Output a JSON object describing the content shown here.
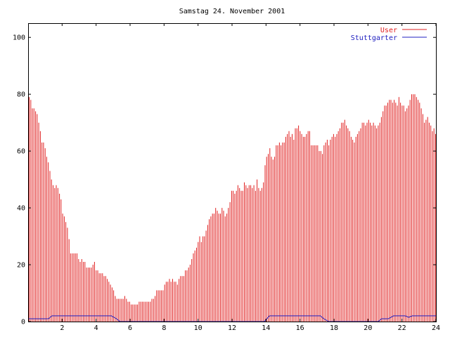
{
  "chart_data": {
    "type": "bar",
    "title": "Samstag 24. November 2001",
    "xlabel": "",
    "ylabel": "",
    "xlim": [
      0,
      24
    ],
    "ylim": [
      0,
      105
    ],
    "x_ticks": [
      2,
      4,
      6,
      8,
      10,
      12,
      14,
      16,
      18,
      20,
      22,
      24
    ],
    "y_ticks": [
      0,
      20,
      40,
      60,
      80,
      100
    ],
    "grid": false,
    "legend_position": "top-right",
    "colors": {
      "user": "#e02020",
      "stuttgarter": "#2020c0",
      "axis": "#000000",
      "background": "#ffffff"
    },
    "series": [
      {
        "name": "User",
        "style": "impulses",
        "interval_hours": 0.0833,
        "values": [
          79,
          78,
          75,
          75,
          74,
          73,
          70,
          67,
          63,
          63,
          61,
          58,
          56,
          53,
          50,
          48,
          47,
          48,
          47,
          45,
          43,
          38,
          37,
          35,
          33,
          29,
          24,
          24,
          24,
          24,
          24,
          22,
          21,
          22,
          21,
          21,
          19,
          19,
          19,
          19,
          20,
          21,
          18,
          18,
          17,
          17,
          17,
          16,
          16,
          15,
          14,
          13,
          12,
          11,
          9,
          8,
          8,
          8,
          8,
          8,
          9,
          8,
          7,
          7,
          6,
          6,
          6,
          6,
          6,
          7,
          7,
          7,
          7,
          7,
          7,
          7,
          7,
          8,
          8,
          9,
          11,
          11,
          11,
          11,
          11,
          13,
          14,
          14,
          15,
          14,
          15,
          14,
          14,
          13,
          15,
          16,
          16,
          16,
          18,
          18,
          19,
          20,
          22,
          24,
          25,
          26,
          28,
          30,
          28,
          30,
          30,
          32,
          34,
          36,
          37,
          38,
          38,
          40,
          39,
          38,
          38,
          40,
          39,
          37,
          38,
          40,
          42,
          46,
          46,
          45,
          46,
          48,
          47,
          46,
          46,
          49,
          48,
          47,
          48,
          48,
          47,
          48,
          46,
          50,
          47,
          46,
          47,
          49,
          55,
          58,
          59,
          61,
          58,
          57,
          58,
          62,
          62,
          63,
          62,
          63,
          63,
          65,
          66,
          67,
          65,
          66,
          64,
          68,
          68,
          69,
          67,
          66,
          65,
          65,
          66,
          67,
          67,
          62,
          62,
          62,
          62,
          62,
          60,
          60,
          59,
          62,
          63,
          64,
          62,
          64,
          65,
          66,
          65,
          66,
          67,
          68,
          70,
          70,
          71,
          69,
          68,
          67,
          65,
          64,
          63,
          65,
          66,
          67,
          68,
          70,
          70,
          69,
          70,
          71,
          70,
          69,
          70,
          69,
          68,
          69,
          70,
          72,
          74,
          76,
          76,
          77,
          78,
          78,
          77,
          78,
          77,
          76,
          79,
          77,
          76,
          76,
          74,
          75,
          76,
          78,
          80,
          80,
          80,
          79,
          78,
          77,
          75,
          73,
          70,
          71,
          72,
          70,
          69,
          67,
          68,
          66
        ]
      },
      {
        "name": "Stuttgarter",
        "style": "lines",
        "points": [
          [
            0,
            1
          ],
          [
            1.2,
            1
          ],
          [
            1.4,
            2
          ],
          [
            4.9,
            2
          ],
          [
            5.2,
            1
          ],
          [
            5.4,
            0
          ],
          [
            9.0,
            0
          ],
          [
            13.9,
            0
          ],
          [
            14.2,
            2
          ],
          [
            17.2,
            2
          ],
          [
            17.4,
            1
          ],
          [
            17.7,
            0
          ],
          [
            20.6,
            0
          ],
          [
            20.8,
            1
          ],
          [
            21.2,
            1
          ],
          [
            21.5,
            2
          ],
          [
            22.2,
            2
          ],
          [
            22.4,
            1.5
          ],
          [
            22.6,
            2
          ],
          [
            24,
            2
          ]
        ]
      }
    ]
  }
}
